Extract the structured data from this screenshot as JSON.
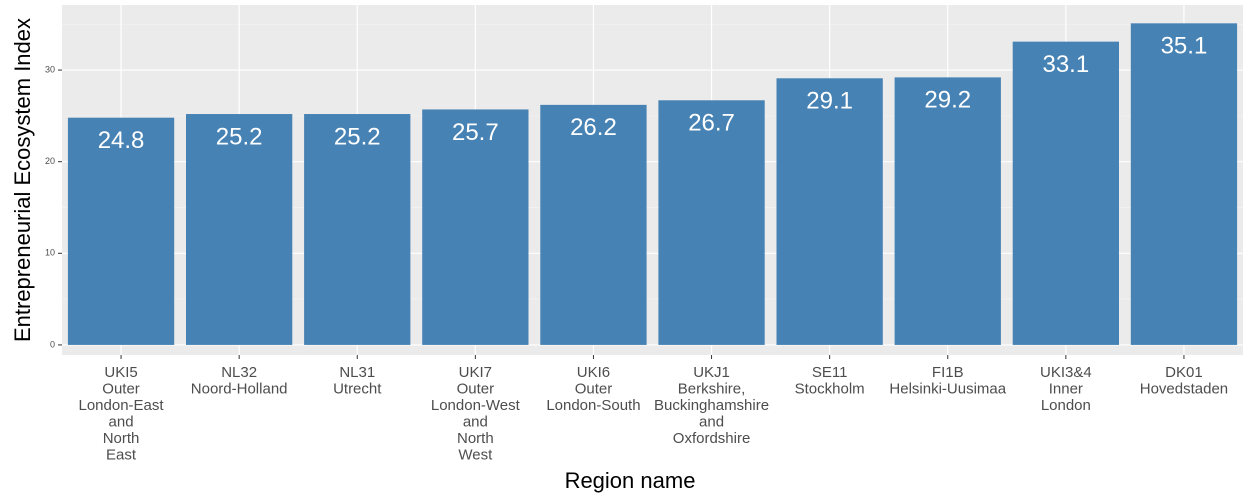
{
  "chart_data": {
    "type": "bar",
    "x_label": "Region name",
    "y_label": "Entrepreneurial Ecosystem Index",
    "categories": [
      [
        "UKI5",
        "Outer",
        "London-East",
        "and",
        "North",
        "East"
      ],
      [
        "NL32",
        "Noord-Holland"
      ],
      [
        "NL31",
        "Utrecht"
      ],
      [
        "UKI7",
        "Outer",
        "London-West",
        "and",
        "North",
        "West"
      ],
      [
        "UKI6",
        "Outer",
        "London-South"
      ],
      [
        "UKJ1",
        "Berkshire,",
        "Buckinghamshire",
        "and",
        "Oxfordshire"
      ],
      [
        "SE11",
        "Stockholm"
      ],
      [
        "FI1B",
        "Helsinki-Uusimaa"
      ],
      [
        "UKI3&4",
        "Inner",
        "London"
      ],
      [
        "DK01",
        "Hovedstaden"
      ]
    ],
    "values": [
      24.8,
      25.2,
      25.2,
      25.7,
      26.2,
      26.7,
      29.1,
      29.2,
      33.1,
      35.1
    ],
    "color": "#4682b4",
    "ylim": [
      -1.1,
      37.1
    ],
    "yticks": [
      0,
      10,
      20,
      30
    ],
    "y_minor_ticks": [
      5,
      15,
      25,
      35
    ],
    "grid": true
  }
}
